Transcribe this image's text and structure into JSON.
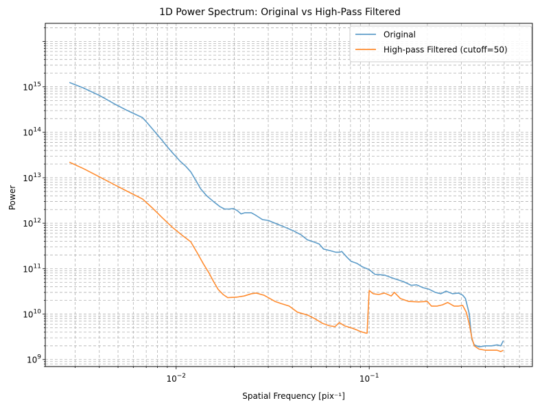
{
  "chart_data": {
    "type": "line",
    "title": "1D Power Spectrum: Original vs High-Pass Filtered",
    "xlabel": "Spatial Frequency [pix⁻¹]",
    "ylabel": "Power",
    "xscale": "log",
    "yscale": "log",
    "xlim": [
      0.0021,
      0.7
    ],
    "ylim": [
      700000000,
      25000000000000000
    ],
    "xticks": [
      {
        "value": 0.01,
        "base": "10",
        "exp": "−2"
      },
      {
        "value": 0.1,
        "base": "10",
        "exp": "−1"
      }
    ],
    "yticks": [
      {
        "value": 1000000000,
        "base": "10",
        "exp": "9"
      },
      {
        "value": 10000000000,
        "base": "10",
        "exp": "10"
      },
      {
        "value": 100000000000,
        "base": "10",
        "exp": "11"
      },
      {
        "value": 1000000000000,
        "base": "10",
        "exp": "12"
      },
      {
        "value": 10000000000000,
        "base": "10",
        "exp": "13"
      },
      {
        "value": 100000000000000,
        "base": "10",
        "exp": "14"
      },
      {
        "value": 1000000000000000,
        "base": "10",
        "exp": "15"
      }
    ],
    "grid": "major and minor, dashed",
    "legend": "top-right",
    "series": [
      {
        "name": "Original",
        "color": "#5b9bc8",
        "points": [
          [
            0.0028,
            1250000000000000.0
          ],
          [
            0.0033,
            950000000000000.0
          ],
          [
            0.004,
            650000000000000.0
          ],
          [
            0.0048,
            420000000000000.0
          ],
          [
            0.0056,
            300000000000000.0
          ],
          [
            0.0067,
            210000000000000.0
          ],
          [
            0.0071,
            160000000000000.0
          ],
          [
            0.0078,
            100000000000000.0
          ],
          [
            0.0085,
            65000000000000.0
          ],
          [
            0.009,
            48000000000000.0
          ],
          [
            0.0096,
            35000000000000.0
          ],
          [
            0.0105,
            23000000000000.0
          ],
          [
            0.0112,
            18000000000000.0
          ],
          [
            0.0119,
            13500000000000.0
          ],
          [
            0.0128,
            8000000000000.0
          ],
          [
            0.0134,
            5700000000000.0
          ],
          [
            0.0144,
            4000000000000.0
          ],
          [
            0.0156,
            3000000000000.0
          ],
          [
            0.0169,
            2300000000000.0
          ],
          [
            0.0178,
            2050000000000.0
          ],
          [
            0.0188,
            2050000000000.0
          ],
          [
            0.0198,
            2100000000000.0
          ],
          [
            0.0207,
            1900000000000.0
          ],
          [
            0.0217,
            1600000000000.0
          ],
          [
            0.0227,
            1700000000000.0
          ],
          [
            0.0245,
            1700000000000.0
          ],
          [
            0.0258,
            1500000000000.0
          ],
          [
            0.028,
            1200000000000.0
          ],
          [
            0.03,
            1150000000000.0
          ],
          [
            0.0335,
            950000000000.0
          ],
          [
            0.037,
            800000000000.0
          ],
          [
            0.0405,
            680000000000.0
          ],
          [
            0.0445,
            550000000000.0
          ],
          [
            0.0478,
            430000000000.0
          ],
          [
            0.0505,
            400000000000.0
          ],
          [
            0.055,
            350000000000.0
          ],
          [
            0.058,
            270000000000.0
          ],
          [
            0.0625,
            250000000000.0
          ],
          [
            0.067,
            230000000000.0
          ],
          [
            0.0705,
            230000000000.0
          ],
          [
            0.072,
            240000000000.0
          ],
          [
            0.0765,
            180000000000.0
          ],
          [
            0.0805,
            145000000000.0
          ],
          [
            0.0865,
            130000000000.0
          ],
          [
            0.092,
            110000000000.0
          ],
          [
            0.1,
            95000000000.0
          ],
          [
            0.107,
            75000000000.0
          ],
          [
            0.12,
            72000000000.0
          ],
          [
            0.135,
            60000000000.0
          ],
          [
            0.15,
            52000000000.0
          ],
          [
            0.165,
            43000000000.0
          ],
          [
            0.176,
            44000000000.0
          ],
          [
            0.19,
            38000000000.0
          ],
          [
            0.205,
            35000000000.0
          ],
          [
            0.22,
            30000000000.0
          ],
          [
            0.235,
            28000000000.0
          ],
          [
            0.25,
            32000000000.0
          ],
          [
            0.27,
            28000000000.0
          ],
          [
            0.29,
            29000000000.0
          ],
          [
            0.305,
            26000000000.0
          ],
          [
            0.315,
            22000000000.0
          ],
          [
            0.33,
            10000000000.0
          ],
          [
            0.335,
            5000000000.0
          ],
          [
            0.34,
            2800000000.0
          ],
          [
            0.35,
            2100000000.0
          ],
          [
            0.37,
            1900000000.0
          ],
          [
            0.4,
            2000000000.0
          ],
          [
            0.43,
            2000000000.0
          ],
          [
            0.46,
            2100000000.0
          ],
          [
            0.48,
            2000000000.0
          ],
          [
            0.495,
            2600000000.0
          ]
        ]
      },
      {
        "name": "High-pass Filtered (cutoff=50)",
        "color": "#ff8b2e",
        "points": [
          [
            0.0028,
            22000000000000.0
          ],
          [
            0.0033,
            16000000000000.0
          ],
          [
            0.004,
            10500000000000.0
          ],
          [
            0.0048,
            7000000000000.0
          ],
          [
            0.0056,
            5000000000000.0
          ],
          [
            0.0067,
            3400000000000.0
          ],
          [
            0.0075,
            2200000000000.0
          ],
          [
            0.0085,
            1300000000000.0
          ],
          [
            0.0096,
            800000000000.0
          ],
          [
            0.0107,
            550000000000.0
          ],
          [
            0.0119,
            390000000000.0
          ],
          [
            0.0128,
            230000000000.0
          ],
          [
            0.0138,
            130000000000.0
          ],
          [
            0.0148,
            80000000000.0
          ],
          [
            0.0157,
            50000000000.0
          ],
          [
            0.0165,
            35000000000.0
          ],
          [
            0.0175,
            27000000000.0
          ],
          [
            0.0185,
            23000000000.0
          ],
          [
            0.0205,
            23500000000.0
          ],
          [
            0.0225,
            25000000000.0
          ],
          [
            0.0245,
            28000000000.0
          ],
          [
            0.026,
            29000000000.0
          ],
          [
            0.0285,
            26000000000.0
          ],
          [
            0.03,
            23000000000.0
          ],
          [
            0.0325,
            19000000000.0
          ],
          [
            0.035,
            17000000000.0
          ],
          [
            0.0385,
            15000000000.0
          ],
          [
            0.0425,
            11000000000.0
          ],
          [
            0.048,
            9500000000.0
          ],
          [
            0.052,
            8000000000.0
          ],
          [
            0.0575,
            6200000000.0
          ],
          [
            0.0625,
            5500000000.0
          ],
          [
            0.0665,
            5300000000.0
          ],
          [
            0.07,
            6500000000.0
          ],
          [
            0.0745,
            5500000000.0
          ],
          [
            0.0805,
            5000000000.0
          ],
          [
            0.086,
            4500000000.0
          ],
          [
            0.0905,
            4100000000.0
          ],
          [
            0.0965,
            3800000000.0
          ],
          [
            0.0975,
            3800000000.0
          ],
          [
            0.099,
            15000000000.0
          ],
          [
            0.1,
            33000000000.0
          ],
          [
            0.105,
            28000000000.0
          ],
          [
            0.112,
            27000000000.0
          ],
          [
            0.12,
            29000000000.0
          ],
          [
            0.13,
            25000000000.0
          ],
          [
            0.135,
            30000000000.0
          ],
          [
            0.145,
            22000000000.0
          ],
          [
            0.16,
            19000000000.0
          ],
          [
            0.18,
            18500000000.0
          ],
          [
            0.2,
            19000000000.0
          ],
          [
            0.21,
            15000000000.0
          ],
          [
            0.225,
            15000000000.0
          ],
          [
            0.24,
            16000000000.0
          ],
          [
            0.255,
            18000000000.0
          ],
          [
            0.275,
            15000000000.0
          ],
          [
            0.29,
            15000000000.0
          ],
          [
            0.305,
            15500000000.0
          ],
          [
            0.318,
            11000000000.0
          ],
          [
            0.33,
            6000000000.0
          ],
          [
            0.34,
            3000000000.0
          ],
          [
            0.35,
            2000000000.0
          ],
          [
            0.37,
            1700000000.0
          ],
          [
            0.4,
            1600000000.0
          ],
          [
            0.43,
            1600000000.0
          ],
          [
            0.46,
            1600000000.0
          ],
          [
            0.48,
            1500000000.0
          ],
          [
            0.495,
            1600000000.0
          ]
        ]
      }
    ]
  }
}
